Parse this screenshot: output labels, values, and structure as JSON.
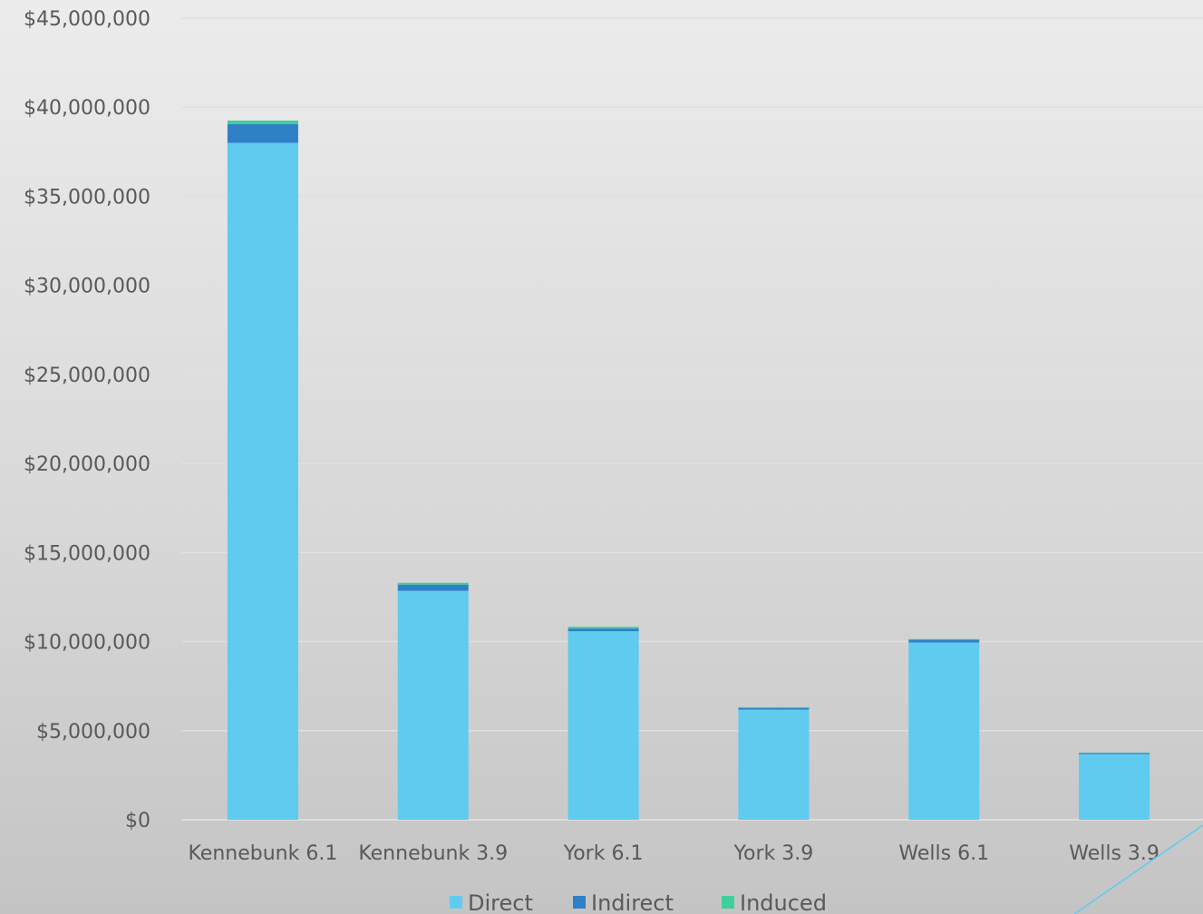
{
  "chart_data": {
    "type": "bar",
    "stacked": true,
    "categories": [
      "Kennebunk 6.1",
      "Kennebunk 3.9",
      "York 6.1",
      "York 3.9",
      "Wells 6.1",
      "Wells 3.9"
    ],
    "series": [
      {
        "name": "Direct",
        "color": "#5ecbef",
        "values": [
          38000000,
          12850000,
          10580000,
          6180000,
          9950000,
          3680000
        ]
      },
      {
        "name": "Indirect",
        "color": "#2f80c6",
        "values": [
          1050000,
          350000,
          150000,
          90000,
          150000,
          60000
        ]
      },
      {
        "name": "Induced",
        "color": "#3fcf9a",
        "values": [
          200000,
          100000,
          100000,
          50000,
          40000,
          20000
        ]
      }
    ],
    "y_ticks": [
      "$0",
      "$5,000,000",
      "$10,000,000",
      "$15,000,000",
      "$20,000,000",
      "$25,000,000",
      "$30,000,000",
      "$35,000,000",
      "$40,000,000",
      "$45,000,000"
    ],
    "ylim": [
      0,
      45000000
    ],
    "title": "",
    "xlabel": "",
    "ylabel": "",
    "grid": true,
    "legend_position": "bottom"
  }
}
